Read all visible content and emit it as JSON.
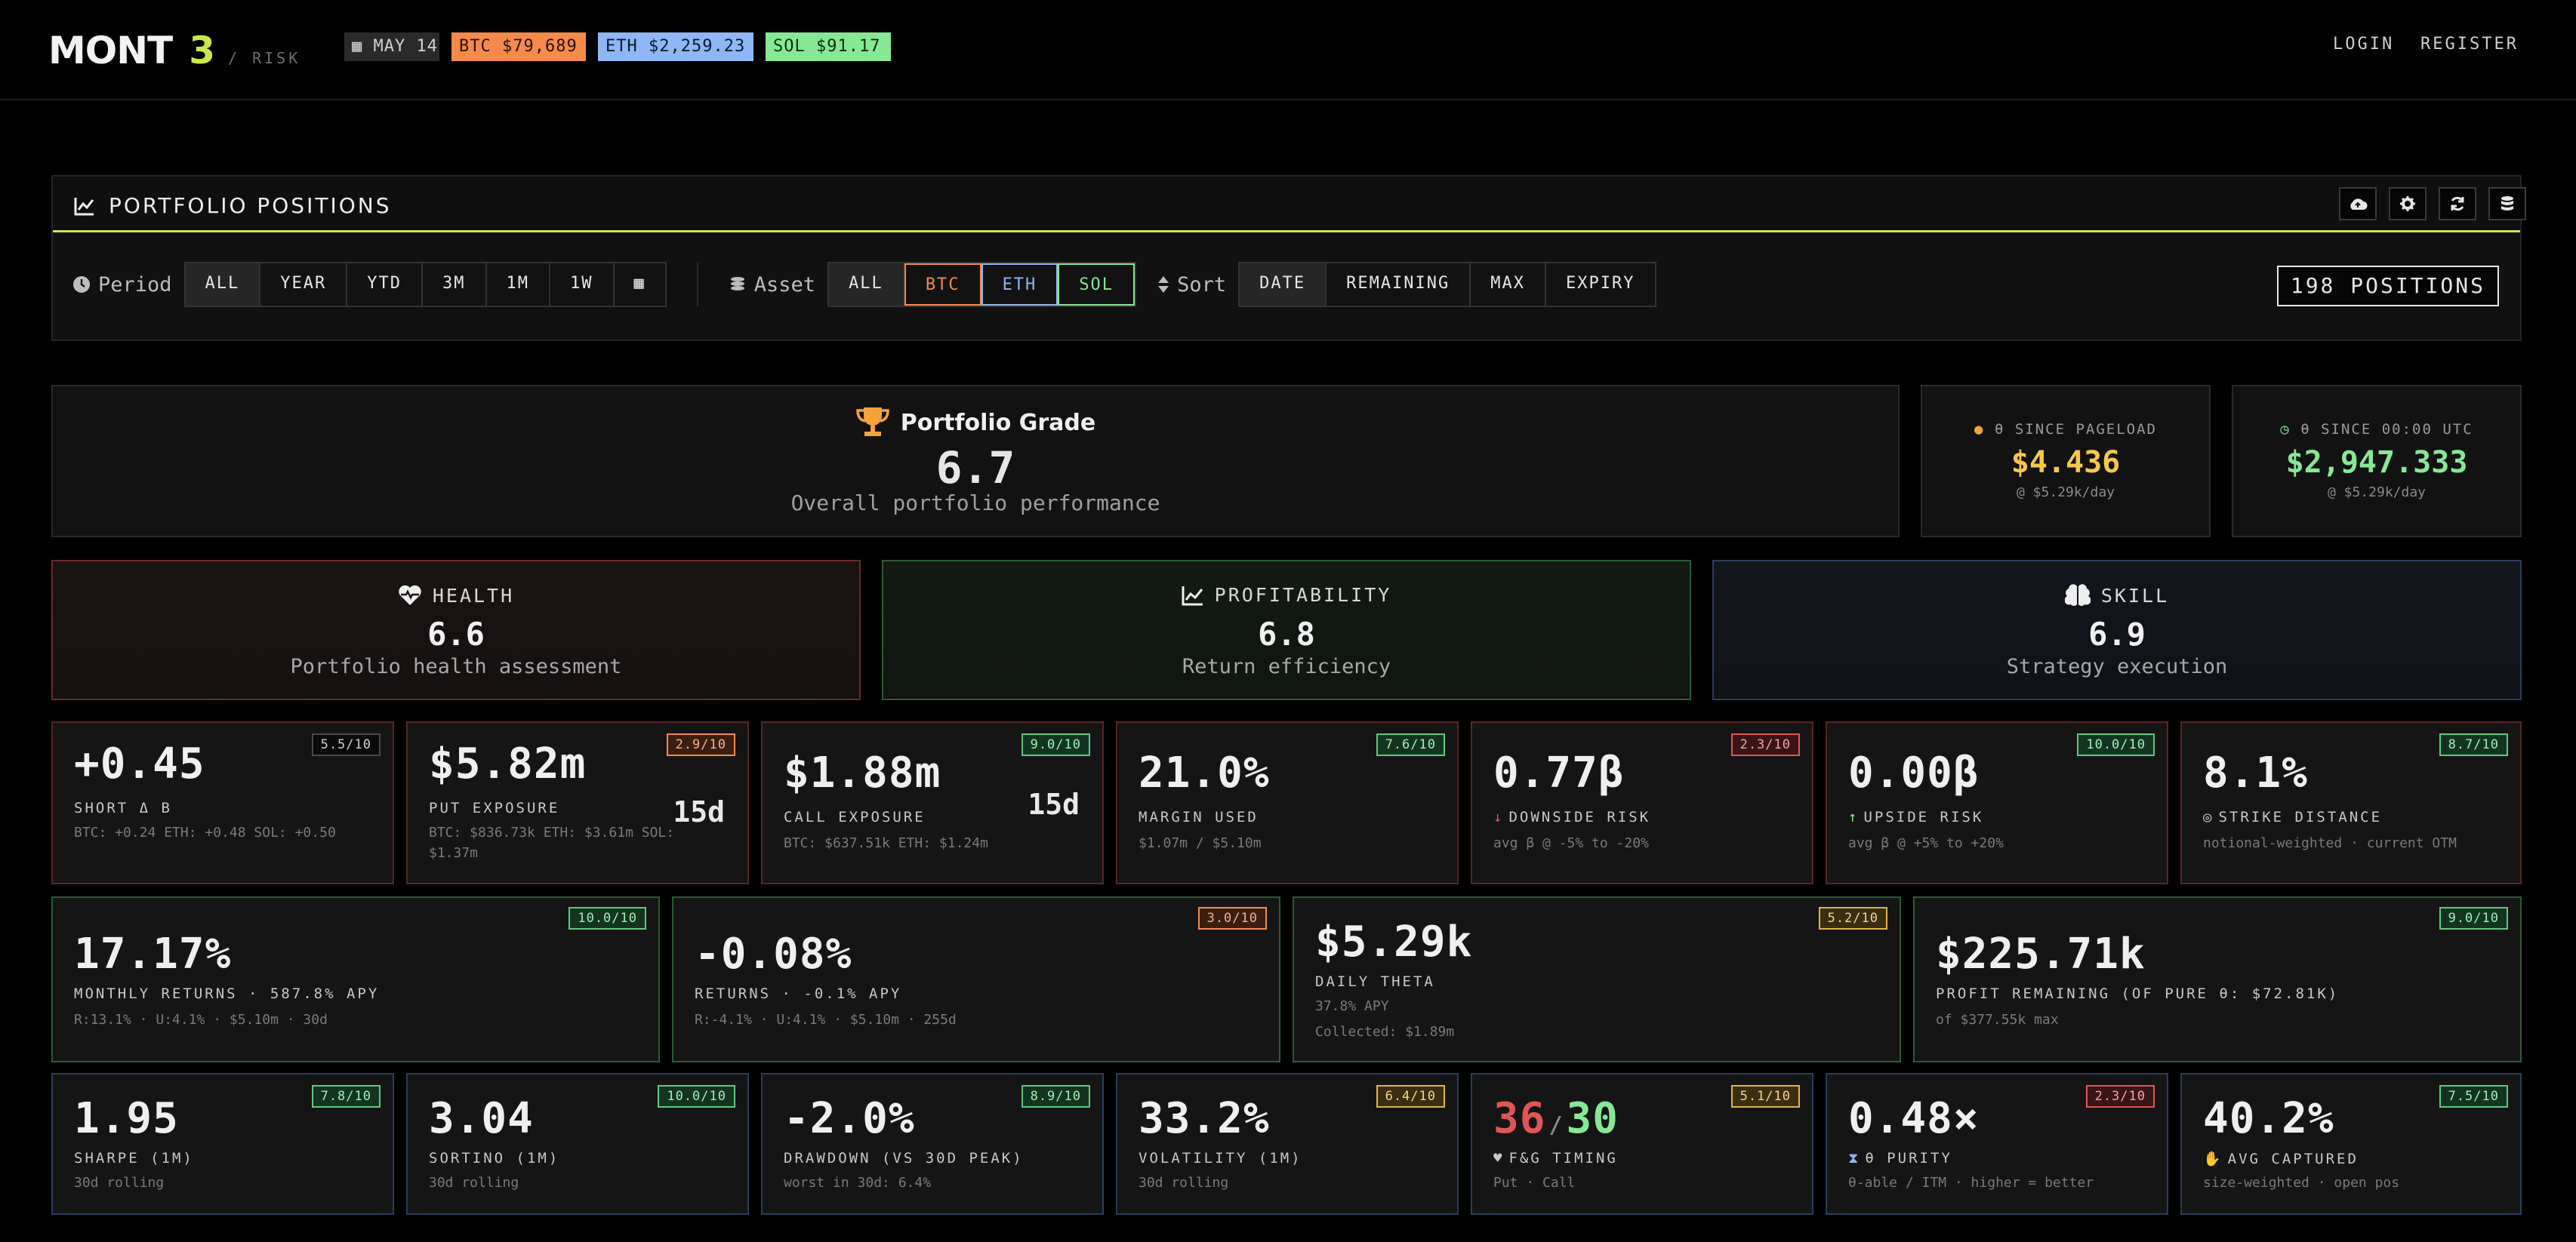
{
  "header": {
    "logo": "MONT",
    "logo_num": "3",
    "logo_sub": "/ RISK",
    "date": "MAY 14",
    "btc": "BTC $79,689",
    "eth": "ETH $2,259.23",
    "sol": "SOL $91.17",
    "login": "LOGIN",
    "register": "REGISTER"
  },
  "panel": {
    "title": "PORTFOLIO POSITIONS",
    "period_label": "Period",
    "periods": [
      "ALL",
      "YEAR",
      "YTD",
      "3M",
      "1M",
      "1W"
    ],
    "asset_label": "Asset",
    "assets": [
      "ALL",
      "BTC",
      "ETH",
      "SOL"
    ],
    "sort_label": "Sort",
    "sorts": [
      "DATE",
      "REMAINING",
      "MAX",
      "EXPIRY"
    ],
    "positions": "198 POSITIONS"
  },
  "grade": {
    "title": "Portfolio Grade",
    "value": "6.7",
    "subtitle": "Overall portfolio performance"
  },
  "since": [
    {
      "label": "θ SINCE PAGELOAD",
      "value": "$4.436",
      "rate": "@ $5.29k/day",
      "color": "#f5c84a"
    },
    {
      "label": "θ SINCE 00:00 UTC",
      "value": "$2,947.333",
      "rate": "@ $5.29k/day",
      "color": "#86e895"
    }
  ],
  "categories": [
    {
      "label": "HEALTH",
      "value": "6.6",
      "desc": "Portfolio health assessment"
    },
    {
      "label": "PROFITABILITY",
      "value": "6.8",
      "desc": "Return efficiency"
    },
    {
      "label": "SKILL",
      "value": "6.9",
      "desc": "Strategy execution"
    }
  ],
  "row1": [
    {
      "value": "+0.45",
      "label": "SHORT Δ B",
      "sub": "BTC: +0.24  ETH: +0.48  SOL: +0.50",
      "badge": "5.5/10",
      "badge_color": "dark"
    },
    {
      "value": "$5.82m",
      "label": "PUT EXPOSURE",
      "sub": "BTC: $836.73k ETH: $3.61m SOL: $1.37m",
      "badge": "2.9/10",
      "badge_color": "orange",
      "days": "15d"
    },
    {
      "value": "$1.88m",
      "label": "CALL EXPOSURE",
      "sub": "BTC: $637.51k ETH: $1.24m",
      "badge": "9.0/10",
      "badge_color": "green",
      "days": "15d"
    },
    {
      "value": "21.0%",
      "label": "MARGIN USED",
      "sub": "$1.07m / $5.10m",
      "badge": "7.6/10",
      "badge_color": "green"
    },
    {
      "value": "0.77β",
      "label": "DOWNSIDE RISK",
      "sub": "avg β @ -5% to -20%",
      "badge": "2.3/10",
      "badge_color": "red"
    },
    {
      "value": "0.00β",
      "label": "UPSIDE RISK",
      "sub": "avg β @ +5% to +20%",
      "badge": "10.0/10",
      "badge_color": "green"
    },
    {
      "value": "8.1%",
      "label": "STRIKE DISTANCE",
      "sub": "notional-weighted · current OTM",
      "badge": "8.7/10",
      "badge_color": "green"
    }
  ],
  "row2": [
    {
      "value": "17.17%",
      "label": "MONTHLY RETURNS · 587.8% APY",
      "sub": "R:13.1% · U:4.1% · $5.10m · 30d",
      "badge": "10.0/10",
      "badge_color": "green"
    },
    {
      "value": "-0.08%",
      "label": "RETURNS · -0.1% APY",
      "sub": "R:-4.1% · U:4.1% · $5.10m · 255d",
      "badge": "3.0/10",
      "badge_color": "orange"
    },
    {
      "value": "$5.29k",
      "label": "DAILY THETA",
      "sub": "37.8% APY",
      "sub2": "Collected: $1.89m",
      "badge": "5.2/10",
      "badge_color": "yellow"
    },
    {
      "value": "$225.71k",
      "label": "PROFIT REMAINING (OF PURE θ: $72.81K)",
      "sub": "of $377.55k max",
      "badge": "9.0/10",
      "badge_color": "green"
    }
  ],
  "row3": [
    {
      "value": "1.95",
      "label": "SHARPE (1M)",
      "sub": "30d rolling",
      "badge": "7.8/10",
      "badge_color": "green"
    },
    {
      "value": "3.04",
      "label": "SORTINO (1M)",
      "sub": "30d rolling",
      "badge": "10.0/10",
      "badge_color": "green"
    },
    {
      "value": "-2.0%",
      "label": "DRAWDOWN (VS 30D PEAK)",
      "sub": "worst in 30d: 6.4%",
      "badge": "8.9/10",
      "badge_color": "green"
    },
    {
      "value": "33.2%",
      "label": "VOLATILITY (1M)",
      "sub": "30d rolling",
      "badge": "6.4/10",
      "badge_color": "yellow"
    },
    {
      "fg_fear": "36",
      "fg_sep": "/",
      "fg_greed": "30",
      "label": "F&G TIMING",
      "sub": "Put · Call",
      "badge": "5.1/10",
      "badge_color": "yellow"
    },
    {
      "value": "0.48×",
      "label": "θ PURITY",
      "sub": "θ-able / ITM · higher = better",
      "badge": "2.3/10",
      "badge_color": "red"
    },
    {
      "value": "40.2%",
      "label": "AVG CAPTURED",
      "sub": "size-weighted · open pos",
      "badge": "7.5/10",
      "badge_color": "green"
    }
  ]
}
